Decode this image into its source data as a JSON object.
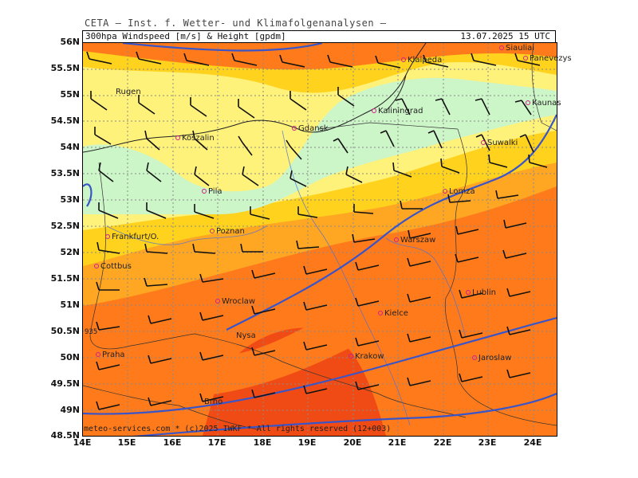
{
  "header": {
    "title": "CETA – Inst. f. Wetter- und Klimafolgenanalysen –",
    "product": "300hpa Windspeed [m/s] & Height [gpdm]",
    "valid": "13.07.2025 15 UTC"
  },
  "footer": "meteo-services.com * (c)2025 IWKF * All rights reserved (12+003)",
  "axes": {
    "lat_labels": [
      "56N",
      "55.5N",
      "55N",
      "54.5N",
      "54N",
      "53.5N",
      "53N",
      "52.5N",
      "52N",
      "51.5N",
      "51N",
      "50.5N",
      "50N",
      "49.5N",
      "49N",
      "48.5N"
    ],
    "lon_labels": [
      "14E",
      "15E",
      "16E",
      "17E",
      "18E",
      "19E",
      "20E",
      "21E",
      "22E",
      "23E",
      "24E"
    ]
  },
  "contour_label": "935",
  "colors": {
    "calm": "#ccf5c8",
    "light": "#fff27a",
    "moderate": "#ffd21e",
    "strong": "#ffa623",
    "very_strong": "#ff7a1a",
    "jet": "#f04b14",
    "height_contour": "#3a55c8"
  },
  "cities": [
    {
      "name": "Siauliai"
    },
    {
      "name": "Panevezys"
    },
    {
      "name": "Klaipeda"
    },
    {
      "name": "Rugen"
    },
    {
      "name": "Kaliningrad"
    },
    {
      "name": "Kaunas"
    },
    {
      "name": "Gdansk"
    },
    {
      "name": "Koszalin"
    },
    {
      "name": "Suwalki"
    },
    {
      "name": "Pila"
    },
    {
      "name": "Lomza"
    },
    {
      "name": "Poznan"
    },
    {
      "name": "Frankfurt/O."
    },
    {
      "name": "Warszaw"
    },
    {
      "name": "Cottbus"
    },
    {
      "name": "Lublin"
    },
    {
      "name": "Wroclaw"
    },
    {
      "name": "Kielce"
    },
    {
      "name": "Nysa"
    },
    {
      "name": "Praha"
    },
    {
      "name": "Krakow"
    },
    {
      "name": "Jaroslaw"
    },
    {
      "name": "Brno"
    }
  ]
}
